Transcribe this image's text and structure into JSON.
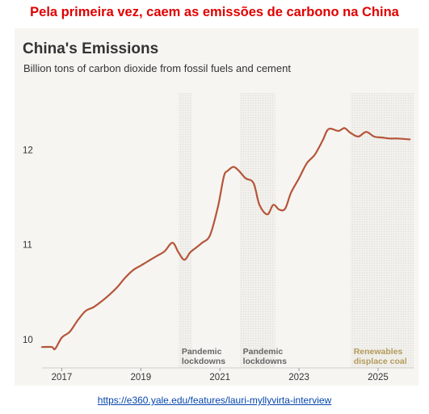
{
  "headline": "Pela primeira vez, caem as emissões de carbono na China",
  "source_url": "https://e360.yale.edu/features/lauri-myllyvirta-interview",
  "colors": {
    "line": "#b5553a",
    "headline": "#e00000",
    "panel": "#f6f5f1",
    "annotation_gray": "#666666",
    "annotation_gold": "#b39a5a"
  },
  "chart_data": {
    "type": "line",
    "title": "China's Emissions",
    "subtitle": "Billion tons of carbon dioxide from fossil fuels and cement",
    "xlabel": "",
    "ylabel": "",
    "xlim": [
      2016.5,
      2025.9
    ],
    "ylim": [
      9.7,
      12.6
    ],
    "x_ticks": [
      2017,
      2019,
      2021,
      2023,
      2025
    ],
    "y_ticks": [
      10,
      11,
      12
    ],
    "grid": false,
    "series": [
      {
        "x": [
          2016.5,
          2016.75,
          2016.83,
          2017.0,
          2017.2,
          2017.4,
          2017.6,
          2017.8,
          2018.0,
          2018.2,
          2018.4,
          2018.6,
          2018.8,
          2019.0,
          2019.2,
          2019.4,
          2019.6,
          2019.8,
          2019.95,
          2020.1,
          2020.25,
          2020.4,
          2020.55,
          2020.75,
          2020.95,
          2021.1,
          2021.2,
          2021.35,
          2021.5,
          2021.65,
          2021.85,
          2022.0,
          2022.2,
          2022.35,
          2022.5,
          2022.65,
          2022.8,
          2023.0,
          2023.2,
          2023.4,
          2023.6,
          2023.75,
          2024.0,
          2024.15,
          2024.3,
          2024.5,
          2024.7,
          2024.9,
          2025.1,
          2025.3,
          2025.5,
          2025.8
        ],
        "y": [
          9.92,
          9.92,
          9.9,
          10.02,
          10.08,
          10.2,
          10.3,
          10.34,
          10.4,
          10.47,
          10.55,
          10.65,
          10.73,
          10.78,
          10.83,
          10.88,
          10.93,
          11.02,
          10.92,
          10.84,
          10.92,
          10.97,
          11.02,
          11.1,
          11.4,
          11.72,
          11.78,
          11.82,
          11.77,
          11.7,
          11.65,
          11.42,
          11.32,
          11.42,
          11.37,
          11.38,
          11.55,
          11.7,
          11.86,
          11.95,
          12.1,
          12.22,
          12.2,
          12.23,
          12.18,
          12.14,
          12.19,
          12.14,
          12.13,
          12.12,
          12.12,
          12.11
        ]
      }
    ],
    "shaded_periods": [
      {
        "x0": 2019.95,
        "x1": 2020.3,
        "label_lines": [
          "Pandemic",
          "lockdowns"
        ],
        "tone": "gray"
      },
      {
        "x0": 2021.5,
        "x1": 2022.4,
        "label_lines": [
          "Pandemic",
          "lockdowns"
        ],
        "tone": "gray"
      },
      {
        "x0": 2024.3,
        "x1": 2025.9,
        "label_lines": [
          "Renewables",
          "displace coal"
        ],
        "tone": "gold"
      }
    ]
  }
}
